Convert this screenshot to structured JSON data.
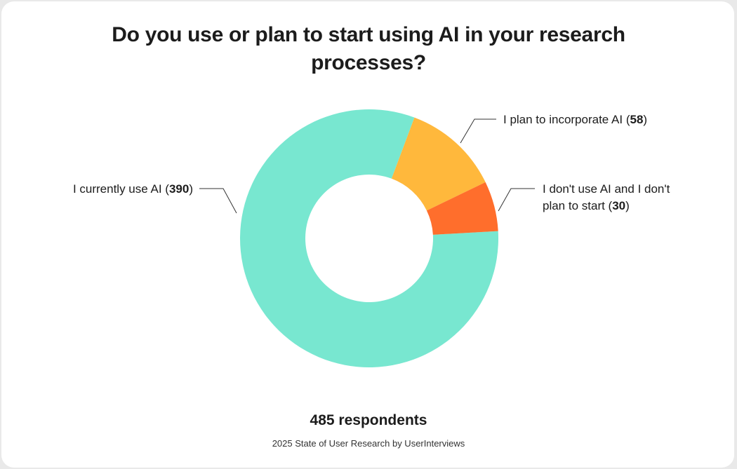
{
  "chart_data": {
    "type": "pie",
    "title": "Do you use or plan to start using AI in your research processes?",
    "slices": [
      {
        "label": "I currently use AI",
        "value": 390,
        "color": "#78e7d0"
      },
      {
        "label": "I plan to incorporate AI",
        "value": 58,
        "color": "#ffb83c"
      },
      {
        "label": "I don't use AI and I don't plan to start",
        "value": 30,
        "color": "#ff6e2c"
      }
    ],
    "total_respondents_label": "485 respondents",
    "source": "2025 State of User Research by UserInterviews"
  },
  "labels": {
    "current": {
      "pre": "I currently use AI (",
      "num": "390",
      "post": ")"
    },
    "plan": {
      "pre": "I plan to incorporate AI (",
      "num": "58",
      "post": ")"
    },
    "dont_line1": "I don't use AI and I don't",
    "dont_line2": {
      "pre": "plan to start (",
      "num": "30",
      "post": ")"
    }
  }
}
